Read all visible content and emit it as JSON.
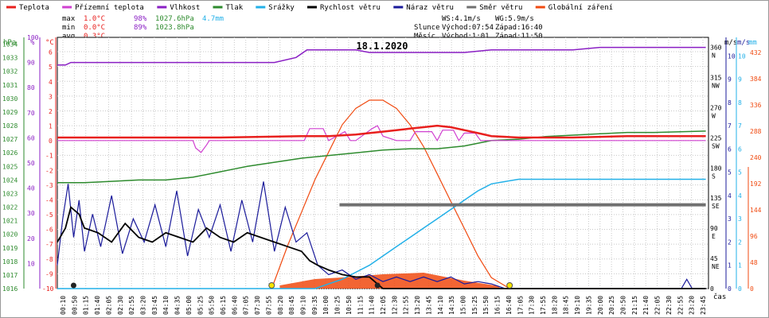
{
  "legend": [
    {
      "label": "Teplota",
      "color": "#e8201e"
    },
    {
      "label": "Přízemní teplota",
      "color": "#d040d0"
    },
    {
      "label": "Vlhkost",
      "color": "#8a1fc4"
    },
    {
      "label": "Tlak",
      "color": "#2e8b2e"
    },
    {
      "label": "Srážky",
      "color": "#22b0e8"
    },
    {
      "label": "Rychlost větru",
      "color": "#000000"
    },
    {
      "label": "Náraz větru",
      "color": "#1a1a9a"
    },
    {
      "label": "Směr větru",
      "color": "#707070"
    },
    {
      "label": "Globální záření",
      "color": "#f04a10"
    }
  ],
  "stats": {
    "max_label": "max",
    "max_temp": "1.0°C",
    "max_hum": "98%",
    "max_press": "1027.6hPa",
    "rain_total": "4.7mm",
    "min_label": "min",
    "min_temp": "0.0°C",
    "min_hum": "89%",
    "min_press": "1023.8hPa",
    "avg_label": "avg",
    "avg_temp": "0.3°C"
  },
  "wind_info": {
    "ws": "WS:4.1m/s",
    "wg": "WG:5.9m/s"
  },
  "sun": {
    "label": "Slunce",
    "rise": "Východ:07:54",
    "set": "Západ:16:40"
  },
  "moon": {
    "label": "Měsíc",
    "rise": "Východ:1:01",
    "set": "Západ:11:50"
  },
  "chart_data": {
    "type": "line",
    "title": "18.1.2020",
    "xlabel": "čas",
    "x_ticks": [
      "00:10",
      "00:50",
      "01:15",
      "01:40",
      "02:05",
      "02:30",
      "02:55",
      "03:20",
      "03:45",
      "04:10",
      "04:35",
      "05:00",
      "05:25",
      "05:50",
      "06:15",
      "06:40",
      "07:05",
      "07:30",
      "07:55",
      "08:20",
      "08:45",
      "09:10",
      "09:35",
      "10:00",
      "10:25",
      "10:50",
      "11:15",
      "11:40",
      "12:05",
      "12:30",
      "12:55",
      "13:20",
      "13:45",
      "14:10",
      "14:35",
      "15:00",
      "15:25",
      "15:50",
      "16:15",
      "16:40",
      "17:05",
      "17:30",
      "17:55",
      "18:20",
      "18:45",
      "19:10",
      "19:35",
      "20:00",
      "20:25",
      "20:50",
      "21:15",
      "21:40",
      "22:05",
      "22:30",
      "22:55",
      "23:20",
      "23:45"
    ],
    "left_axes": [
      {
        "unit": "hPa",
        "ticks": [
          "1016",
          "1017",
          "1018",
          "1019",
          "1020",
          "1021",
          "1022",
          "1023",
          "1024",
          "1025",
          "1026",
          "1027",
          "1028",
          "1029",
          "1030",
          "1031",
          "1032",
          "1033",
          "1034"
        ],
        "color": "#2e8b2e"
      },
      {
        "unit": "%",
        "ticks": [
          "10",
          "20",
          "30",
          "40",
          "50",
          "60",
          "70",
          "80",
          "90",
          "100"
        ],
        "color": "#8a1fc4"
      },
      {
        "unit": "°C",
        "ticks": [
          "-10",
          "-9",
          "-8",
          "-7",
          "-6",
          "-5",
          "-4",
          "-3",
          "-2",
          "-1",
          "0",
          "1",
          "2",
          "3",
          "4",
          "5",
          "6"
        ],
        "color": "#e8201e"
      }
    ],
    "right_axes": [
      {
        "unit": "m/s",
        "ticks": [
          {
            "v": "0",
            "d": ""
          },
          {
            "v": "45",
            "d": "NE"
          },
          {
            "v": "90",
            "d": "E"
          },
          {
            "v": "135",
            "d": "SE"
          },
          {
            "v": "180",
            "d": "S"
          },
          {
            "v": "225",
            "d": "SW"
          },
          {
            "v": "270",
            "d": "W"
          },
          {
            "v": "315",
            "d": "NW"
          },
          {
            "v": "360",
            "d": "N"
          }
        ]
      },
      {
        "unit": "m/s",
        "ticks": [
          "0",
          "1",
          "2",
          "3",
          "4",
          "5",
          "6",
          "7",
          "8",
          "9",
          "10"
        ],
        "color": "#1a1a9a"
      },
      {
        "unit": "mm",
        "ticks": [
          "0",
          "1",
          "2",
          "3",
          "4",
          "5",
          "6",
          "7",
          "8",
          "9",
          "10"
        ],
        "color": "#22b0e8"
      },
      {
        "unit": "W/m2",
        "ticks": [
          "0",
          "48",
          "96",
          "144",
          "192",
          "240",
          "288",
          "336",
          "384",
          "432"
        ],
        "color": "#f04a10"
      }
    ],
    "series": [
      {
        "name": "Teplota",
        "color": "#e8201e",
        "x": [
          0,
          3,
          6,
          9,
          10,
          11,
          11.5,
          12,
          12.5,
          13,
          13.5,
          14,
          14.5,
          15,
          15.5,
          16,
          17,
          19,
          21,
          23.9
        ],
        "y": [
          0.2,
          0.2,
          0.2,
          0.3,
          0.3,
          0.4,
          0.5,
          0.6,
          0.7,
          0.8,
          0.9,
          1.0,
          0.9,
          0.7,
          0.5,
          0.3,
          0.2,
          0.2,
          0.3,
          0.3
        ]
      },
      {
        "name": "Vlhkost",
        "color": "#8a1fc4",
        "x": [
          0,
          0.3,
          0.5,
          1,
          5,
          8,
          8.8,
          9.2,
          9.6,
          11,
          11.5,
          12,
          13,
          15,
          16,
          18,
          19,
          20,
          21,
          22,
          23.9
        ],
        "y": [
          89,
          89,
          90,
          90,
          90,
          90,
          92,
          95,
          95,
          95,
          94,
          94,
          94,
          94,
          95,
          95,
          95,
          96,
          96,
          96,
          96
        ]
      },
      {
        "name": "Přízemní teplota",
        "color": "#d040d0",
        "x": [
          0,
          5,
          5.1,
          5.3,
          5.5,
          5.6,
          6,
          9.1,
          9.3,
          9.8,
          10,
          10.6,
          10.8,
          11,
          11.6,
          11.8,
          12,
          12.5,
          13,
          13.2,
          13.8,
          14,
          14.2,
          14.6,
          14.8,
          15,
          15.4,
          15.6,
          16,
          23.9
        ],
        "y": [
          0,
          0,
          -0.5,
          -0.8,
          -0.3,
          0,
          0,
          0,
          0.8,
          0.8,
          0,
          0.6,
          0,
          0,
          0.8,
          1.0,
          0.3,
          0,
          0,
          0.6,
          0.6,
          0,
          0.7,
          0.7,
          0,
          0.5,
          0.5,
          0,
          0,
          0
        ]
      },
      {
        "name": "Tlak",
        "color": "#2e8b2e",
        "x": [
          0,
          1,
          2,
          3,
          4,
          5,
          6,
          6.5,
          7,
          8,
          9,
          10,
          11,
          12,
          13,
          14,
          15,
          16,
          17,
          18,
          19,
          20,
          21,
          22,
          23.9
        ],
        "y": [
          1023.8,
          1023.8,
          1023.9,
          1024.0,
          1024.0,
          1024.2,
          1024.6,
          1024.8,
          1025.0,
          1025.3,
          1025.6,
          1025.8,
          1026.0,
          1026.2,
          1026.3,
          1026.3,
          1026.5,
          1026.9,
          1027.0,
          1027.2,
          1027.3,
          1027.4,
          1027.5,
          1027.5,
          1027.6
        ]
      },
      {
        "name": "Srážky",
        "color": "#22b0e8",
        "x": [
          0,
          9.5,
          10,
          10.5,
          11,
          11.5,
          12,
          12.5,
          13,
          13.5,
          14,
          14.5,
          15,
          15.5,
          16,
          16.5,
          17,
          17.5,
          23.9
        ],
        "y": [
          0,
          0,
          0.2,
          0.4,
          0.7,
          1.0,
          1.4,
          1.8,
          2.2,
          2.6,
          3.0,
          3.4,
          3.8,
          4.2,
          4.5,
          4.6,
          4.7,
          4.7,
          4.7
        ]
      },
      {
        "name": "Rychlost větru",
        "color": "#000000",
        "x": [
          0,
          0.3,
          0.5,
          0.8,
          1,
          1.5,
          2,
          2.5,
          3,
          3.5,
          4,
          4.5,
          5,
          5.5,
          6,
          6.5,
          7,
          7.5,
          8,
          8.5,
          9,
          9.3,
          9.6,
          10,
          10.5,
          11,
          11.5,
          12,
          23.9
        ],
        "y": [
          2.0,
          2.6,
          3.5,
          3.2,
          2.6,
          2.4,
          2.0,
          2.8,
          2.2,
          2.0,
          2.4,
          2.2,
          2.0,
          2.6,
          2.2,
          2.0,
          2.4,
          2.2,
          2.0,
          1.8,
          1.6,
          1.2,
          1.0,
          0.8,
          0.6,
          0.5,
          0.5,
          0.0,
          0.0
        ]
      },
      {
        "name": "Náraz větru",
        "color": "#1a1a9a",
        "x": [
          0,
          0.2,
          0.4,
          0.6,
          0.8,
          1,
          1.3,
          1.6,
          2,
          2.4,
          2.8,
          3.2,
          3.6,
          4,
          4.4,
          4.8,
          5.2,
          5.6,
          6,
          6.4,
          6.8,
          7.2,
          7.6,
          8,
          8.4,
          8.8,
          9.2,
          9.6,
          10,
          10.5,
          11,
          11.5,
          12,
          12.5,
          13,
          13.5,
          14,
          14.5,
          15,
          15.5,
          16,
          16.5,
          17,
          23,
          23.2,
          23.4,
          23.9
        ],
        "y": [
          1.0,
          3.0,
          4.5,
          2.2,
          3.8,
          1.6,
          3.2,
          1.8,
          4.0,
          1.5,
          3.0,
          2.0,
          3.6,
          1.8,
          4.2,
          1.4,
          3.4,
          2.2,
          3.6,
          1.6,
          3.8,
          2.0,
          4.6,
          1.6,
          3.5,
          2.0,
          2.4,
          1.0,
          0.6,
          0.8,
          0.4,
          0.6,
          0.3,
          0.5,
          0.3,
          0.5,
          0.3,
          0.5,
          0.2,
          0.3,
          0.2,
          0.0,
          0.0,
          0.0,
          0.4,
          0.0,
          0.0
        ]
      },
      {
        "name": "Globální záření",
        "color": "#f04a10",
        "x": [
          7.9,
          8.5,
          9,
          9.5,
          10,
          10.5,
          11,
          11.5,
          12,
          12.5,
          13,
          13.5,
          14,
          14.5,
          15,
          15.5,
          16,
          16.67
        ],
        "y": [
          0,
          80,
          140,
          200,
          250,
          300,
          330,
          345,
          345,
          330,
          300,
          260,
          210,
          160,
          110,
          60,
          20,
          0
        ]
      }
    ]
  }
}
